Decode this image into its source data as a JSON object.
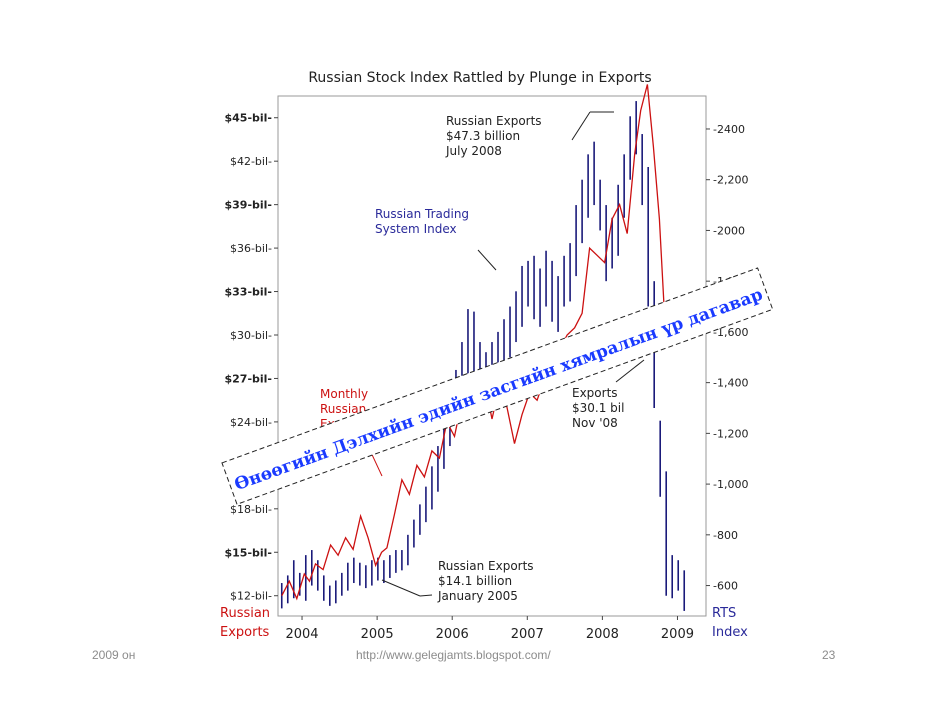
{
  "chart_data": {
    "type": "line",
    "title": "Russian Stock Index Rattled by Plunge in Exports",
    "x_ticks": [
      "2004",
      "2005",
      "2006",
      "2007",
      "2008",
      "2009"
    ],
    "xlim": [
      2003.7,
      2009.4
    ],
    "left_axis": {
      "label_line1": "Russian",
      "label_line2": "Exports",
      "ticks": [
        "$12-bil",
        "$15-bil",
        "$18-bil",
        "$21-bil",
        "$24-bil",
        "$27-bil",
        "$30-bil",
        "$33-bil",
        "$36-bil",
        "$39-bil",
        "$42-bil",
        "$45-bil"
      ],
      "tick_values": [
        12,
        15,
        18,
        21,
        24,
        27,
        30,
        33,
        36,
        39,
        42,
        45
      ],
      "range": [
        10.6,
        46.5
      ]
    },
    "right_axis": {
      "label_line1": "RTS",
      "label_line2": "Index",
      "ticks": [
        "600",
        "800",
        "1,000",
        "1,200",
        "1,400",
        "1,600",
        "1,800",
        "2000",
        "2,200",
        "-2400"
      ],
      "tick_values": [
        600,
        800,
        1000,
        1200,
        1400,
        1600,
        1800,
        2000,
        2200,
        2400
      ],
      "range": [
        480,
        2530
      ]
    },
    "series": [
      {
        "name": "Monthly Russian Exports",
        "color": "#cc1111",
        "x": [
          2003.75,
          2003.85,
          2003.95,
          2004.05,
          2004.12,
          2004.2,
          2004.3,
          2004.4,
          2004.5,
          2004.6,
          2004.7,
          2004.8,
          2004.9,
          2005.0,
          2005.08,
          2005.15,
          2005.25,
          2005.35,
          2005.45,
          2005.55,
          2005.65,
          2005.75,
          2005.85,
          2005.95,
          2006.05,
          2006.15,
          2006.25,
          2006.35,
          2006.45,
          2006.55,
          2006.65,
          2006.75,
          2006.85,
          2006.95,
          2007.05,
          2007.15,
          2007.25,
          2007.35,
          2007.45,
          2007.55,
          2007.65,
          2007.75,
          2007.85,
          2007.95,
          2008.05,
          2008.15,
          2008.25,
          2008.35,
          2008.45,
          2008.53,
          2008.62,
          2008.7,
          2008.78,
          2008.86
        ],
        "values": [
          12.0,
          13.0,
          11.8,
          13.5,
          13.0,
          14.2,
          13.8,
          15.5,
          14.8,
          16.0,
          15.2,
          17.5,
          16.0,
          14.1,
          15.0,
          15.3,
          17.6,
          20.0,
          19.0,
          21.0,
          20.2,
          22.0,
          21.5,
          24.0,
          23.0,
          25.5,
          24.8,
          25.0,
          26.8,
          24.2,
          26.5,
          25.0,
          22.5,
          24.5,
          26.0,
          25.5,
          27.0,
          28.5,
          29.0,
          30.0,
          30.5,
          31.5,
          36.0,
          35.5,
          35.0,
          38.0,
          39.0,
          37.0,
          42.5,
          45.5,
          47.3,
          43.0,
          38.0,
          30.1
        ]
      },
      {
        "name": "Russian Trading System Index",
        "color": "#1a1a7a",
        "ohlc_hl": [
          [
            2003.75,
            510,
            610
          ],
          [
            2003.83,
            530,
            640
          ],
          [
            2003.91,
            550,
            700
          ],
          [
            2003.99,
            560,
            650
          ],
          [
            2004.07,
            540,
            720
          ],
          [
            2004.15,
            600,
            740
          ],
          [
            2004.23,
            580,
            700
          ],
          [
            2004.31,
            540,
            640
          ],
          [
            2004.39,
            520,
            600
          ],
          [
            2004.47,
            530,
            620
          ],
          [
            2004.55,
            560,
            650
          ],
          [
            2004.63,
            580,
            690
          ],
          [
            2004.71,
            610,
            710
          ],
          [
            2004.79,
            600,
            690
          ],
          [
            2004.87,
            590,
            680
          ],
          [
            2004.95,
            600,
            700
          ],
          [
            2005.03,
            620,
            710
          ],
          [
            2005.11,
            610,
            700
          ],
          [
            2005.19,
            630,
            720
          ],
          [
            2005.27,
            650,
            740
          ],
          [
            2005.35,
            660,
            740
          ],
          [
            2005.43,
            680,
            800
          ],
          [
            2005.51,
            750,
            860
          ],
          [
            2005.59,
            800,
            920
          ],
          [
            2005.67,
            850,
            990
          ],
          [
            2005.75,
            900,
            1070
          ],
          [
            2005.83,
            970,
            1150
          ],
          [
            2005.91,
            1060,
            1230
          ],
          [
            2005.99,
            1150,
            1320
          ],
          [
            2006.07,
            1250,
            1450
          ],
          [
            2006.15,
            1340,
            1560
          ],
          [
            2006.23,
            1420,
            1690
          ],
          [
            2006.31,
            1350,
            1680
          ],
          [
            2006.39,
            1280,
            1560
          ],
          [
            2006.47,
            1300,
            1520
          ],
          [
            2006.55,
            1360,
            1560
          ],
          [
            2006.63,
            1380,
            1600
          ],
          [
            2006.71,
            1420,
            1650
          ],
          [
            2006.79,
            1500,
            1700
          ],
          [
            2006.87,
            1560,
            1760
          ],
          [
            2006.95,
            1620,
            1860
          ],
          [
            2007.03,
            1700,
            1880
          ],
          [
            2007.11,
            1650,
            1900
          ],
          [
            2007.19,
            1620,
            1850
          ],
          [
            2007.27,
            1700,
            1920
          ],
          [
            2007.35,
            1640,
            1880
          ],
          [
            2007.43,
            1600,
            1820
          ],
          [
            2007.51,
            1700,
            1900
          ],
          [
            2007.59,
            1720,
            1950
          ],
          [
            2007.67,
            1820,
            2100
          ],
          [
            2007.75,
            1950,
            2200
          ],
          [
            2007.83,
            2050,
            2300
          ],
          [
            2007.91,
            2100,
            2350
          ],
          [
            2007.99,
            2000,
            2200
          ],
          [
            2008.07,
            1800,
            2100
          ],
          [
            2008.15,
            1850,
            2050
          ],
          [
            2008.23,
            1900,
            2180
          ],
          [
            2008.31,
            2050,
            2300
          ],
          [
            2008.39,
            2200,
            2450
          ],
          [
            2008.47,
            2300,
            2510
          ],
          [
            2008.55,
            2100,
            2380
          ],
          [
            2008.63,
            1700,
            2250
          ],
          [
            2008.71,
            1300,
            1800
          ],
          [
            2008.79,
            950,
            1250
          ],
          [
            2008.87,
            560,
            1050
          ],
          [
            2008.95,
            550,
            720
          ],
          [
            2009.03,
            580,
            700
          ],
          [
            2009.11,
            500,
            660
          ]
        ]
      }
    ],
    "annotations": {
      "peak": [
        "Russian Exports",
        "$47.3 billion",
        "July 2008"
      ],
      "rts": [
        "Russian Trading",
        "System Index"
      ],
      "monthly": [
        "Monthly",
        "Russian",
        "Exports"
      ],
      "nov": [
        "Exports",
        "$30.1 bil",
        "Nov '08"
      ],
      "jan": [
        "Russian Exports",
        "$14.1 billion",
        "January 2005"
      ]
    },
    "overlay_text": "Өнөөгийн Дэлхийн эдийн засгийн хямралын үр дагавар"
  },
  "footer": {
    "left": "2009 он",
    "url": "http://www.gelegjamts.blogspot.com/",
    "page": "23"
  }
}
